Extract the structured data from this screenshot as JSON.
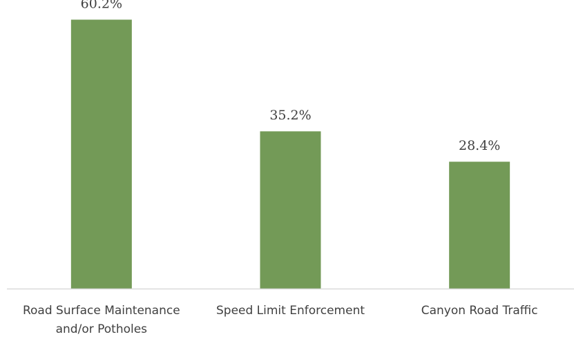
{
  "chart_data": {
    "type": "bar",
    "categories": [
      [
        "Road Surface Maintenance",
        "and/or Potholes"
      ],
      [
        "Speed Limit Enforcement"
      ],
      [
        "Canyon Road Traffic"
      ]
    ],
    "values": [
      60.2,
      35.2,
      28.4
    ],
    "data_labels": [
      "60.2%",
      "35.2%",
      "28.4%"
    ],
    "title": "",
    "xlabel": "",
    "ylabel": "",
    "ylim": [
      0,
      64.6
    ],
    "grid": false,
    "legend": "none",
    "colors": {
      "bar": "#739A57",
      "axis": "#D9D9D9",
      "text": "#404040"
    }
  }
}
